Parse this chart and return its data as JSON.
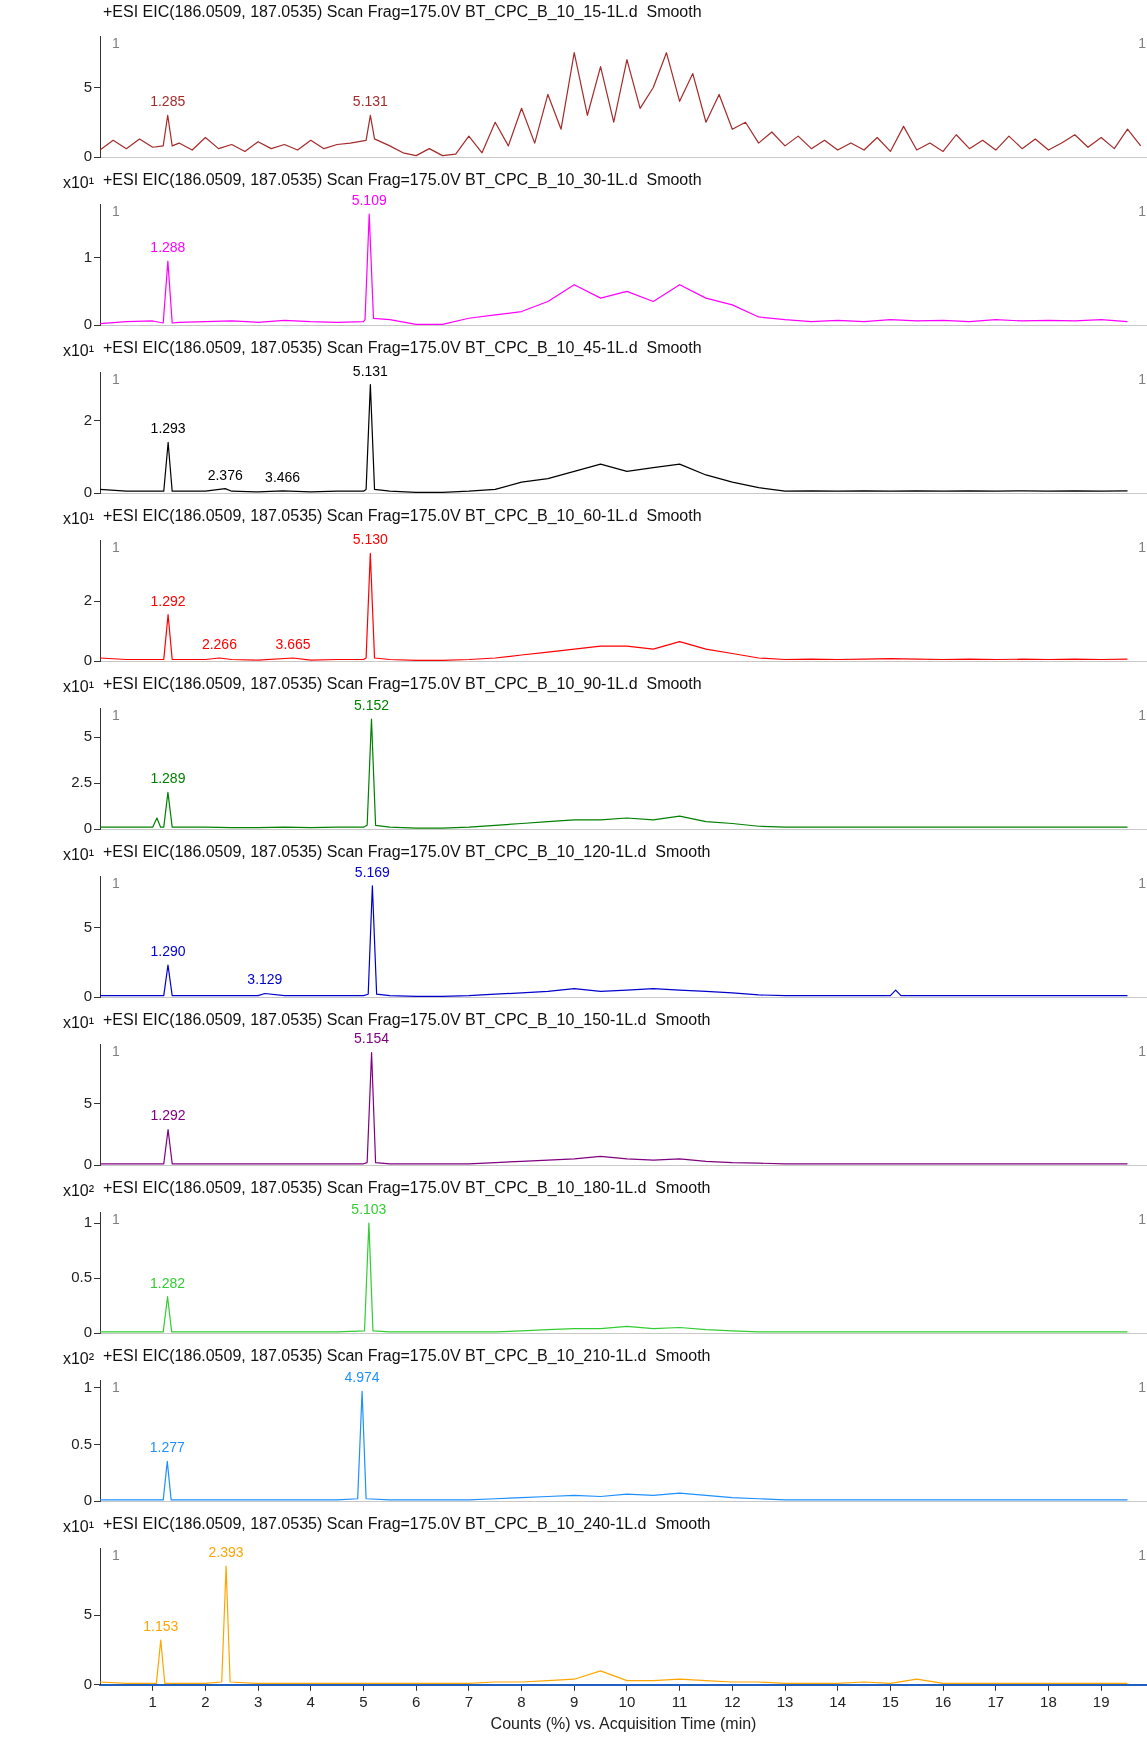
{
  "chart_data": [
    {
      "type": "line",
      "title": "+ESI EIC(186.0509, 187.0535) Scan Frag=175.0V BT_CPC_B_10_15-1L.d  Smooth",
      "xlim": [
        0,
        19.87
      ],
      "xticks": [
        1,
        2,
        3,
        4,
        5,
        6,
        7,
        8,
        9,
        10,
        11,
        12,
        13,
        14,
        15,
        16,
        17,
        18,
        19
      ],
      "ylim": [
        0,
        8.7
      ],
      "yticks": [
        0,
        5
      ],
      "tick_labels": "y",
      "grid": false,
      "legend": false,
      "series": [
        {
          "color": "#a52a2a",
          "x": [
            0,
            0.25,
            0.5,
            0.75,
            1,
            1.2,
            1.285,
            1.37,
            1.5,
            1.75,
            2,
            2.25,
            2.5,
            2.75,
            3,
            3.25,
            3.5,
            3.75,
            4,
            4.25,
            4.5,
            4.75,
            5.05,
            5.131,
            5.21,
            5.5,
            5.75,
            6,
            6.25,
            6.5,
            6.75,
            7,
            7.25,
            7.5,
            7.75,
            8,
            8.25,
            8.5,
            8.75,
            9,
            9.25,
            9.5,
            9.75,
            10,
            10.25,
            10.5,
            10.75,
            11,
            11.25,
            11.5,
            11.75,
            12,
            12.25,
            12.5,
            12.75,
            13,
            13.25,
            13.5,
            13.75,
            14,
            14.25,
            14.5,
            14.75,
            15,
            15.25,
            15.5,
            15.75,
            16,
            16.25,
            16.5,
            16.75,
            17,
            17.25,
            17.5,
            17.75,
            18,
            18.25,
            18.5,
            18.75,
            19,
            19.25,
            19.5,
            19.75
          ],
          "values": [
            0.5,
            1.2,
            0.6,
            1.3,
            0.7,
            0.8,
            3.0,
            0.8,
            1.0,
            0.5,
            1.4,
            0.6,
            0.9,
            0.4,
            1.1,
            0.6,
            0.9,
            0.5,
            1.2,
            0.6,
            0.9,
            1.0,
            1.2,
            3.0,
            1.3,
            0.8,
            0.3,
            0.1,
            0.6,
            0.1,
            0.2,
            1.5,
            0.3,
            2.5,
            0.8,
            3.5,
            1.0,
            4.5,
            2.0,
            7.5,
            3.0,
            6.5,
            2.5,
            7.0,
            3.5,
            5.0,
            7.5,
            4.0,
            6.0,
            2.5,
            4.5,
            2.0,
            2.5,
            1.0,
            1.8,
            0.8,
            1.5,
            0.6,
            1.2,
            0.5,
            1.0,
            0.5,
            1.4,
            0.4,
            2.2,
            0.5,
            1.0,
            0.4,
            1.6,
            0.6,
            1.2,
            0.5,
            1.5,
            0.6,
            1.3,
            0.5,
            1.0,
            1.6,
            0.7,
            1.4,
            0.6,
            2.0,
            0.8
          ]
        }
      ],
      "annotations": [
        "1",
        "1",
        {
          "text": "1.285",
          "x": 1.285,
          "y": 3.0
        },
        {
          "text": "5.131",
          "x": 5.131,
          "y": 3.0
        }
      ]
    },
    {
      "type": "line",
      "title": "+ESI EIC(186.0509, 187.0535) Scan Frag=175.0V BT_CPC_B_10_30-1L.d  Smooth",
      "ylabel": "x10¹",
      "xlim": [
        0,
        19.87
      ],
      "xticks": [
        1,
        2,
        3,
        4,
        5,
        6,
        7,
        8,
        9,
        10,
        11,
        12,
        13,
        14,
        15,
        16,
        17,
        18,
        19
      ],
      "ylim": [
        0,
        1.8
      ],
      "yticks": [
        0,
        1
      ],
      "tick_labels": "y",
      "grid": false,
      "legend": false,
      "series": [
        {
          "color": "#ff00ff",
          "x": [
            0,
            0.5,
            1,
            1.2,
            1.288,
            1.37,
            1.5,
            2,
            2.5,
            3,
            3.5,
            4,
            4.5,
            5,
            5.03,
            5.109,
            5.19,
            5.5,
            6,
            6.5,
            7,
            7.5,
            8,
            8.5,
            9,
            9.5,
            10,
            10.5,
            11,
            11.5,
            12,
            12.5,
            13,
            13.5,
            14,
            14.5,
            15,
            15.5,
            16,
            16.5,
            17,
            17.5,
            18,
            18.5,
            19,
            19.5
          ],
          "values": [
            0.02,
            0.05,
            0.06,
            0.03,
            0.95,
            0.03,
            0.04,
            0.05,
            0.06,
            0.04,
            0.07,
            0.05,
            0.04,
            0.05,
            0.08,
            1.65,
            0.1,
            0.08,
            0.01,
            0.01,
            0.1,
            0.15,
            0.2,
            0.35,
            0.6,
            0.4,
            0.5,
            0.35,
            0.6,
            0.4,
            0.3,
            0.12,
            0.08,
            0.05,
            0.07,
            0.05,
            0.08,
            0.06,
            0.07,
            0.05,
            0.08,
            0.06,
            0.07,
            0.06,
            0.08,
            0.05
          ]
        }
      ],
      "annotations": [
        "1",
        "1",
        {
          "text": "1.288",
          "x": 1.288,
          "y": 0.95
        },
        {
          "text": "5.109",
          "x": 5.109,
          "y": 1.65
        }
      ]
    },
    {
      "type": "line",
      "title": "+ESI EIC(186.0509, 187.0535) Scan Frag=175.0V BT_CPC_B_10_45-1L.d  Smooth",
      "ylabel": "x10¹",
      "xlim": [
        0,
        19.87
      ],
      "xticks": [
        1,
        2,
        3,
        4,
        5,
        6,
        7,
        8,
        9,
        10,
        11,
        12,
        13,
        14,
        15,
        16,
        17,
        18,
        19
      ],
      "ylim": [
        0,
        3.35
      ],
      "yticks": [
        0,
        2
      ],
      "tick_labels": "y",
      "grid": false,
      "legend": false,
      "series": [
        {
          "color": "#000000",
          "x": [
            0,
            0.5,
            1,
            1.21,
            1.293,
            1.37,
            1.5,
            2,
            2.376,
            2.5,
            3,
            3.466,
            4,
            4.5,
            5,
            5.05,
            5.131,
            5.21,
            5.5,
            6,
            6.5,
            7,
            7.5,
            8,
            8.5,
            9,
            9.5,
            10,
            10.5,
            11,
            11.5,
            12,
            12.5,
            13,
            13.5,
            14,
            14.5,
            15,
            15.5,
            16,
            16.5,
            17,
            17.5,
            18,
            18.5,
            19,
            19.5
          ],
          "values": [
            0.1,
            0.05,
            0.05,
            0.05,
            1.4,
            0.05,
            0.05,
            0.05,
            0.12,
            0.05,
            0.03,
            0.06,
            0.03,
            0.05,
            0.05,
            0.1,
            3.0,
            0.1,
            0.05,
            0.02,
            0.02,
            0.05,
            0.1,
            0.3,
            0.4,
            0.6,
            0.8,
            0.6,
            0.7,
            0.8,
            0.5,
            0.3,
            0.15,
            0.05,
            0.06,
            0.05,
            0.06,
            0.05,
            0.06,
            0.05,
            0.06,
            0.05,
            0.06,
            0.05,
            0.06,
            0.05,
            0.06
          ]
        }
      ],
      "annotations": [
        "1",
        "1",
        {
          "text": "1.293",
          "x": 1.293,
          "y": 1.4
        },
        {
          "text": "2.376",
          "x": 2.376,
          "y": 0.12
        },
        {
          "text": "3.466",
          "x": 3.466,
          "y": 0.06
        },
        {
          "text": "5.131",
          "x": 5.131,
          "y": 3.0
        }
      ]
    },
    {
      "type": "line",
      "title": "+ESI EIC(186.0509, 187.0535) Scan Frag=175.0V BT_CPC_B_10_60-1L.d  Smooth",
      "ylabel": "x10¹",
      "xlim": [
        0,
        19.87
      ],
      "xticks": [
        1,
        2,
        3,
        4,
        5,
        6,
        7,
        8,
        9,
        10,
        11,
        12,
        13,
        14,
        15,
        16,
        17,
        18,
        19
      ],
      "ylim": [
        0,
        4.05
      ],
      "yticks": [
        0,
        2
      ],
      "tick_labels": "y",
      "grid": false,
      "legend": false,
      "series": [
        {
          "color": "#ff0000",
          "x": [
            0,
            0.5,
            1,
            1.21,
            1.292,
            1.37,
            1.5,
            2,
            2.266,
            2.5,
            3,
            3.665,
            4,
            4.5,
            5,
            5.05,
            5.13,
            5.21,
            5.5,
            6,
            6.5,
            7,
            7.5,
            8,
            8.5,
            9,
            9.5,
            10,
            10.5,
            11,
            11.5,
            12,
            12.5,
            13,
            13.5,
            14,
            14.5,
            15,
            15.5,
            16,
            16.5,
            17,
            17.5,
            18,
            18.5,
            19,
            19.5
          ],
          "values": [
            0.1,
            0.05,
            0.05,
            0.05,
            1.55,
            0.05,
            0.05,
            0.05,
            0.1,
            0.05,
            0.03,
            0.1,
            0.03,
            0.05,
            0.05,
            0.1,
            3.6,
            0.1,
            0.05,
            0.02,
            0.02,
            0.05,
            0.1,
            0.2,
            0.3,
            0.4,
            0.5,
            0.5,
            0.4,
            0.65,
            0.4,
            0.25,
            0.1,
            0.05,
            0.06,
            0.05,
            0.06,
            0.08,
            0.06,
            0.05,
            0.06,
            0.05,
            0.06,
            0.05,
            0.06,
            0.05,
            0.06
          ]
        }
      ],
      "annotations": [
        "1",
        "1",
        {
          "text": "1.292",
          "x": 1.292,
          "y": 1.55
        },
        {
          "text": "2.266",
          "x": 2.266,
          "y": 0.1
        },
        {
          "text": "3.665",
          "x": 3.665,
          "y": 0.1
        },
        {
          "text": "5.130",
          "x": 5.13,
          "y": 3.6
        }
      ]
    },
    {
      "type": "line",
      "title": "+ESI EIC(186.0509, 187.0535) Scan Frag=175.0V BT_CPC_B_10_90-1L.d  Smooth",
      "ylabel": "x10¹",
      "xlim": [
        0,
        19.87
      ],
      "xticks": [
        1,
        2,
        3,
        4,
        5,
        6,
        7,
        8,
        9,
        10,
        11,
        12,
        13,
        14,
        15,
        16,
        17,
        18,
        19
      ],
      "ylim": [
        0,
        6.6
      ],
      "yticks": [
        0,
        2.5,
        5
      ],
      "tick_labels": "y",
      "grid": false,
      "legend": false,
      "series": [
        {
          "color": "#008000",
          "x": [
            0,
            0.5,
            1,
            1.08,
            1.15,
            1.21,
            1.289,
            1.37,
            1.5,
            2,
            2.5,
            3,
            3.5,
            4,
            4.5,
            5,
            5.07,
            5.152,
            5.23,
            5.5,
            6,
            6.5,
            7,
            7.5,
            8,
            8.5,
            9,
            9.5,
            10,
            10.5,
            11,
            11.5,
            12,
            12.5,
            13,
            13.5,
            14,
            14.5,
            15,
            15.5,
            16,
            16.5,
            17,
            17.5,
            18,
            18.5,
            19,
            19.5
          ],
          "values": [
            0.1,
            0.1,
            0.1,
            0.6,
            0.1,
            0.1,
            2.0,
            0.1,
            0.1,
            0.1,
            0.08,
            0.08,
            0.1,
            0.08,
            0.1,
            0.1,
            0.2,
            6.0,
            0.2,
            0.1,
            0.05,
            0.05,
            0.1,
            0.2,
            0.3,
            0.4,
            0.5,
            0.5,
            0.6,
            0.5,
            0.7,
            0.4,
            0.3,
            0.15,
            0.1,
            0.1,
            0.1,
            0.1,
            0.1,
            0.1,
            0.1,
            0.1,
            0.1,
            0.1,
            0.1,
            0.1,
            0.1,
            0.1
          ]
        }
      ],
      "annotations": [
        "1",
        "1",
        {
          "text": "1.289",
          "x": 1.289,
          "y": 2.0
        },
        {
          "text": "5.152",
          "x": 5.152,
          "y": 6.0
        }
      ]
    },
    {
      "type": "line",
      "title": "+ESI EIC(186.0509, 187.0535) Scan Frag=175.0V BT_CPC_B_10_120-1L.d  Smooth",
      "ylabel": "x10¹",
      "xlim": [
        0,
        19.87
      ],
      "xticks": [
        1,
        2,
        3,
        4,
        5,
        6,
        7,
        8,
        9,
        10,
        11,
        12,
        13,
        14,
        15,
        16,
        17,
        18,
        19
      ],
      "ylim": [
        0,
        8.7
      ],
      "yticks": [
        0,
        5
      ],
      "tick_labels": "y",
      "grid": false,
      "legend": false,
      "series": [
        {
          "color": "#0000cd",
          "x": [
            0,
            0.5,
            1,
            1.21,
            1.29,
            1.37,
            1.5,
            2,
            2.5,
            3,
            3.129,
            3.5,
            4,
            4.5,
            5,
            5.09,
            5.169,
            5.25,
            5.5,
            6,
            6.5,
            7,
            7.5,
            8,
            8.5,
            9,
            9.5,
            10,
            10.5,
            11,
            11.5,
            12,
            12.5,
            13,
            13.5,
            14,
            14.5,
            15,
            15.1,
            15.2,
            15.5,
            16,
            16.5,
            17,
            17.5,
            18,
            18.5,
            19,
            19.5
          ],
          "values": [
            0.1,
            0.1,
            0.1,
            0.1,
            2.3,
            0.1,
            0.1,
            0.1,
            0.1,
            0.1,
            0.25,
            0.1,
            0.1,
            0.1,
            0.1,
            0.2,
            8.0,
            0.2,
            0.1,
            0.05,
            0.05,
            0.1,
            0.2,
            0.3,
            0.4,
            0.6,
            0.4,
            0.5,
            0.6,
            0.5,
            0.4,
            0.3,
            0.15,
            0.1,
            0.1,
            0.1,
            0.1,
            0.1,
            0.5,
            0.1,
            0.1,
            0.1,
            0.1,
            0.1,
            0.1,
            0.1,
            0.1,
            0.1,
            0.1
          ]
        }
      ],
      "annotations": [
        "1",
        "1",
        {
          "text": "1.290",
          "x": 1.29,
          "y": 2.3
        },
        {
          "text": "3.129",
          "x": 3.129,
          "y": 0.25
        },
        {
          "text": "5.169",
          "x": 5.169,
          "y": 8.0
        }
      ]
    },
    {
      "type": "line",
      "title": "+ESI EIC(186.0509, 187.0535) Scan Frag=175.0V BT_CPC_B_10_150-1L.d  Smooth",
      "ylabel": "x10¹",
      "xlim": [
        0,
        19.87
      ],
      "xticks": [
        1,
        2,
        3,
        4,
        5,
        6,
        7,
        8,
        9,
        10,
        11,
        12,
        13,
        14,
        15,
        16,
        17,
        18,
        19
      ],
      "ylim": [
        0,
        9.9
      ],
      "yticks": [
        0,
        5
      ],
      "tick_labels": "y",
      "grid": false,
      "legend": false,
      "series": [
        {
          "color": "#800080",
          "x": [
            0,
            0.5,
            1,
            1.21,
            1.292,
            1.37,
            1.5,
            2,
            2.5,
            3,
            3.5,
            4,
            4.5,
            5,
            5.07,
            5.154,
            5.23,
            5.5,
            6,
            6.5,
            7,
            7.5,
            8,
            8.5,
            9,
            9.5,
            10,
            10.5,
            11,
            11.5,
            12,
            12.5,
            13,
            13.5,
            14,
            14.5,
            15,
            15.5,
            16,
            16.5,
            17,
            17.5,
            18,
            18.5,
            19,
            19.5
          ],
          "values": [
            0.1,
            0.1,
            0.1,
            0.1,
            2.9,
            0.1,
            0.1,
            0.1,
            0.1,
            0.1,
            0.1,
            0.1,
            0.1,
            0.1,
            0.2,
            9.2,
            0.2,
            0.1,
            0.1,
            0.1,
            0.1,
            0.2,
            0.3,
            0.4,
            0.5,
            0.7,
            0.5,
            0.4,
            0.5,
            0.3,
            0.2,
            0.15,
            0.1,
            0.1,
            0.1,
            0.1,
            0.1,
            0.1,
            0.1,
            0.1,
            0.1,
            0.1,
            0.1,
            0.1,
            0.1,
            0.1
          ]
        }
      ],
      "annotations": [
        "1",
        "1",
        {
          "text": "1.292",
          "x": 1.292,
          "y": 2.9
        },
        {
          "text": "5.154",
          "x": 5.154,
          "y": 9.2
        }
      ]
    },
    {
      "type": "line",
      "title": "+ESI EIC(186.0509, 187.0535) Scan Frag=175.0V BT_CPC_B_10_180-1L.d  Smooth",
      "ylabel": "x10²",
      "xlim": [
        0,
        19.87
      ],
      "xticks": [
        1,
        2,
        3,
        4,
        5,
        6,
        7,
        8,
        9,
        10,
        11,
        12,
        13,
        14,
        15,
        16,
        17,
        18,
        19
      ],
      "ylim": [
        0,
        1.1
      ],
      "yticks": [
        0,
        0.5,
        1
      ],
      "tick_labels": "y",
      "grid": false,
      "legend": false,
      "series": [
        {
          "color": "#32cd32",
          "x": [
            0,
            0.5,
            1,
            1.2,
            1.282,
            1.36,
            1.5,
            2,
            2.5,
            3,
            3.5,
            4,
            4.5,
            5.02,
            5.103,
            5.18,
            5.5,
            6,
            6.5,
            7,
            7.5,
            8,
            8.5,
            9,
            9.5,
            10,
            10.5,
            11,
            11.5,
            12,
            12.5,
            13,
            13.5,
            14,
            14.5,
            15,
            15.5,
            16,
            16.5,
            17,
            17.5,
            18,
            18.5,
            19,
            19.5
          ],
          "values": [
            0.01,
            0.01,
            0.01,
            0.01,
            0.33,
            0.01,
            0.01,
            0.01,
            0.01,
            0.01,
            0.01,
            0.01,
            0.01,
            0.02,
            1.0,
            0.02,
            0.01,
            0.01,
            0.01,
            0.01,
            0.01,
            0.02,
            0.03,
            0.04,
            0.04,
            0.06,
            0.04,
            0.05,
            0.03,
            0.02,
            0.01,
            0.01,
            0.01,
            0.01,
            0.01,
            0.01,
            0.01,
            0.01,
            0.01,
            0.01,
            0.01,
            0.01,
            0.01,
            0.01,
            0.01
          ]
        }
      ],
      "annotations": [
        "1",
        "1",
        {
          "text": "1.282",
          "x": 1.282,
          "y": 0.33
        },
        {
          "text": "5.103",
          "x": 5.103,
          "y": 1.0
        }
      ]
    },
    {
      "type": "line",
      "title": "+ESI EIC(186.0509, 187.0535) Scan Frag=175.0V BT_CPC_B_10_210-1L.d  Smooth",
      "ylabel": "x10²",
      "xlim": [
        0,
        19.87
      ],
      "xticks": [
        1,
        2,
        3,
        4,
        5,
        6,
        7,
        8,
        9,
        10,
        11,
        12,
        13,
        14,
        15,
        16,
        17,
        18,
        19
      ],
      "ylim": [
        0,
        1.07
      ],
      "yticks": [
        0,
        0.5,
        1
      ],
      "tick_labels": "y",
      "grid": false,
      "legend": false,
      "series": [
        {
          "color": "#1e90ff",
          "x": [
            0,
            0.5,
            1,
            1.2,
            1.277,
            1.35,
            1.5,
            2,
            2.5,
            3,
            3.5,
            4,
            4.5,
            4.89,
            4.974,
            5.05,
            5.5,
            6,
            6.5,
            7,
            7.5,
            8,
            8.5,
            9,
            9.5,
            10,
            10.5,
            11,
            11.5,
            12,
            12.5,
            13,
            13.5,
            14,
            14.5,
            15,
            15.5,
            16,
            16.5,
            17,
            17.5,
            18,
            18.5,
            19,
            19.5
          ],
          "values": [
            0.01,
            0.01,
            0.01,
            0.01,
            0.35,
            0.01,
            0.01,
            0.01,
            0.01,
            0.01,
            0.01,
            0.01,
            0.01,
            0.02,
            0.97,
            0.02,
            0.01,
            0.01,
            0.01,
            0.01,
            0.02,
            0.03,
            0.04,
            0.05,
            0.04,
            0.06,
            0.05,
            0.07,
            0.05,
            0.03,
            0.02,
            0.01,
            0.01,
            0.01,
            0.01,
            0.01,
            0.01,
            0.01,
            0.01,
            0.01,
            0.01,
            0.01,
            0.01,
            0.01,
            0.01
          ]
        }
      ],
      "annotations": [
        "1",
        "1",
        {
          "text": "1.277",
          "x": 1.277,
          "y": 0.35
        },
        {
          "text": "4.974",
          "x": 4.974,
          "y": 0.97
        }
      ]
    },
    {
      "type": "line",
      "title": "+ESI EIC(186.0509, 187.0535) Scan Frag=175.0V BT_CPC_B_10_240-1L.d  Smooth",
      "ylabel": "x10¹",
      "xlabel": "Counts (%) vs. Acquisition Time (min)",
      "xlim": [
        0,
        19.87
      ],
      "xticks": [
        1,
        2,
        3,
        4,
        5,
        6,
        7,
        8,
        9,
        10,
        11,
        12,
        13,
        14,
        15,
        16,
        17,
        18,
        19
      ],
      "ylim": [
        0,
        9.8
      ],
      "yticks": [
        0,
        5
      ],
      "grid": false,
      "legend": false,
      "series": [
        {
          "color": "#ffa500",
          "x": [
            0,
            0.5,
            1,
            1.07,
            1.153,
            1.23,
            1.5,
            2,
            2.31,
            2.393,
            2.47,
            3,
            3.5,
            4,
            4.5,
            5,
            5.5,
            6,
            6.5,
            7,
            7.5,
            8,
            8.5,
            9,
            9.5,
            10,
            10.5,
            11,
            11.5,
            12,
            12.5,
            13,
            13.5,
            14,
            14.5,
            15,
            15.5,
            16,
            16.5,
            17,
            17.5,
            18,
            18.5,
            19,
            19.5
          ],
          "values": [
            0.2,
            0.1,
            0.1,
            0.1,
            3.2,
            0.1,
            0.1,
            0.1,
            0.2,
            8.5,
            0.2,
            0.1,
            0.1,
            0.1,
            0.1,
            0.1,
            0.1,
            0.1,
            0.1,
            0.1,
            0.2,
            0.2,
            0.3,
            0.4,
            1.0,
            0.3,
            0.3,
            0.4,
            0.3,
            0.2,
            0.2,
            0.1,
            0.1,
            0.1,
            0.2,
            0.1,
            0.4,
            0.1,
            0.1,
            0.1,
            0.1,
            0.1,
            0.1,
            0.1,
            0.1
          ]
        }
      ],
      "annotations": [
        "1",
        "1",
        {
          "text": "1.153",
          "x": 1.153,
          "y": 3.2
        },
        {
          "text": "2.393",
          "x": 2.393,
          "y": 8.5
        }
      ]
    }
  ]
}
